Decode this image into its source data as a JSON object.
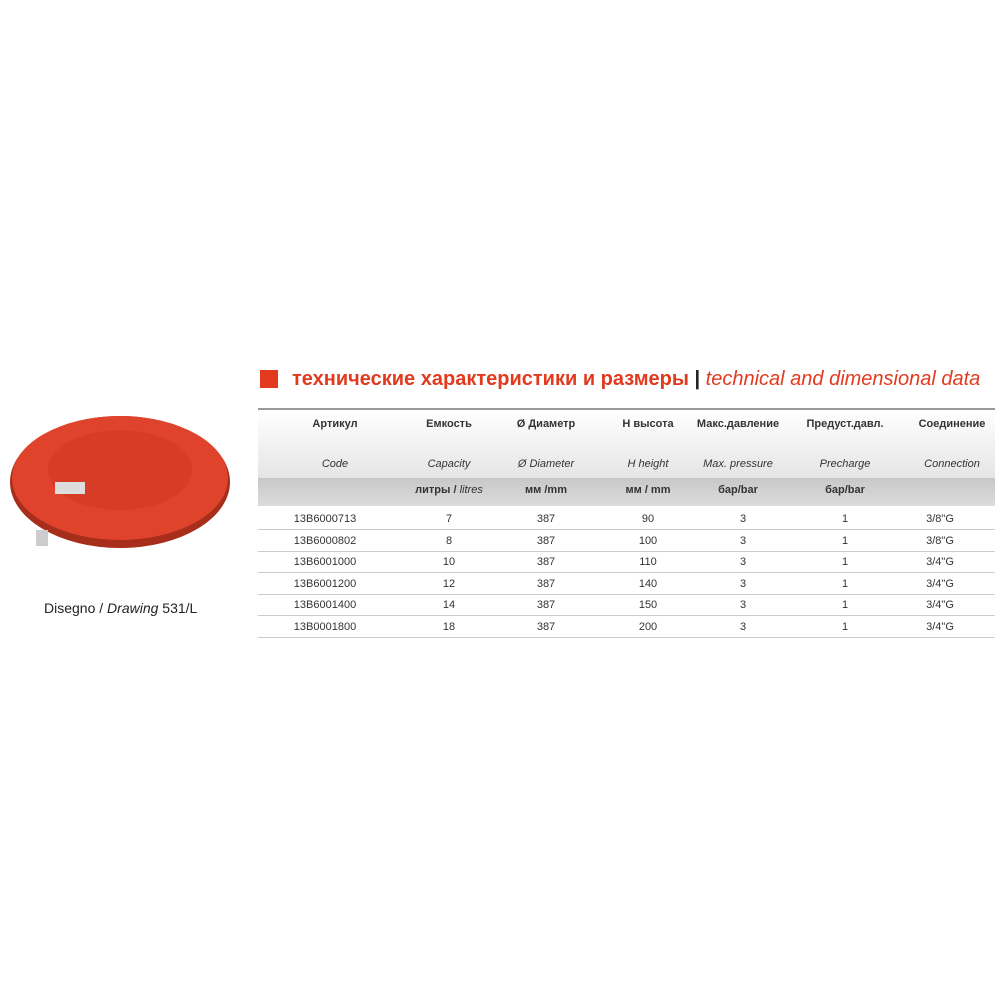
{
  "title_ru": "технические характеристики и размеры",
  "title_en": "technical and dimensional data",
  "caption": {
    "prefix": "Disegno /",
    "italic": "Drawing",
    "suffix": "531/L"
  },
  "table": {
    "header_ru": [
      "Артикул",
      "Емкость",
      "Ø Диаметр",
      "H высота",
      "Макс.давление",
      "Предуст.давл.",
      "Соединение"
    ],
    "header_en": [
      "Code",
      "Capacity",
      "Ø Diameter",
      "H height",
      "Max. pressure",
      "Precharge",
      "Connection"
    ],
    "units": [
      {
        "bold": "литры /",
        "italic": "litres"
      },
      "мм /mm",
      "мм / mm",
      "бар/bar",
      "бар/bar"
    ],
    "rows": [
      [
        "13B6000713",
        7,
        387,
        90,
        3,
        1,
        "3/8\"G"
      ],
      [
        "13B6000802",
        8,
        387,
        100,
        3,
        1,
        "3/8\"G"
      ],
      [
        "13B6001000",
        10,
        387,
        110,
        3,
        1,
        "3/4\"G"
      ],
      [
        "13B6001200",
        12,
        387,
        140,
        3,
        1,
        "3/4\"G"
      ],
      [
        "13B6001400",
        14,
        387,
        150,
        3,
        1,
        "3/4\"G"
      ],
      [
        "13B0001800",
        18,
        387,
        200,
        3,
        1,
        "3/4\"G"
      ]
    ]
  }
}
